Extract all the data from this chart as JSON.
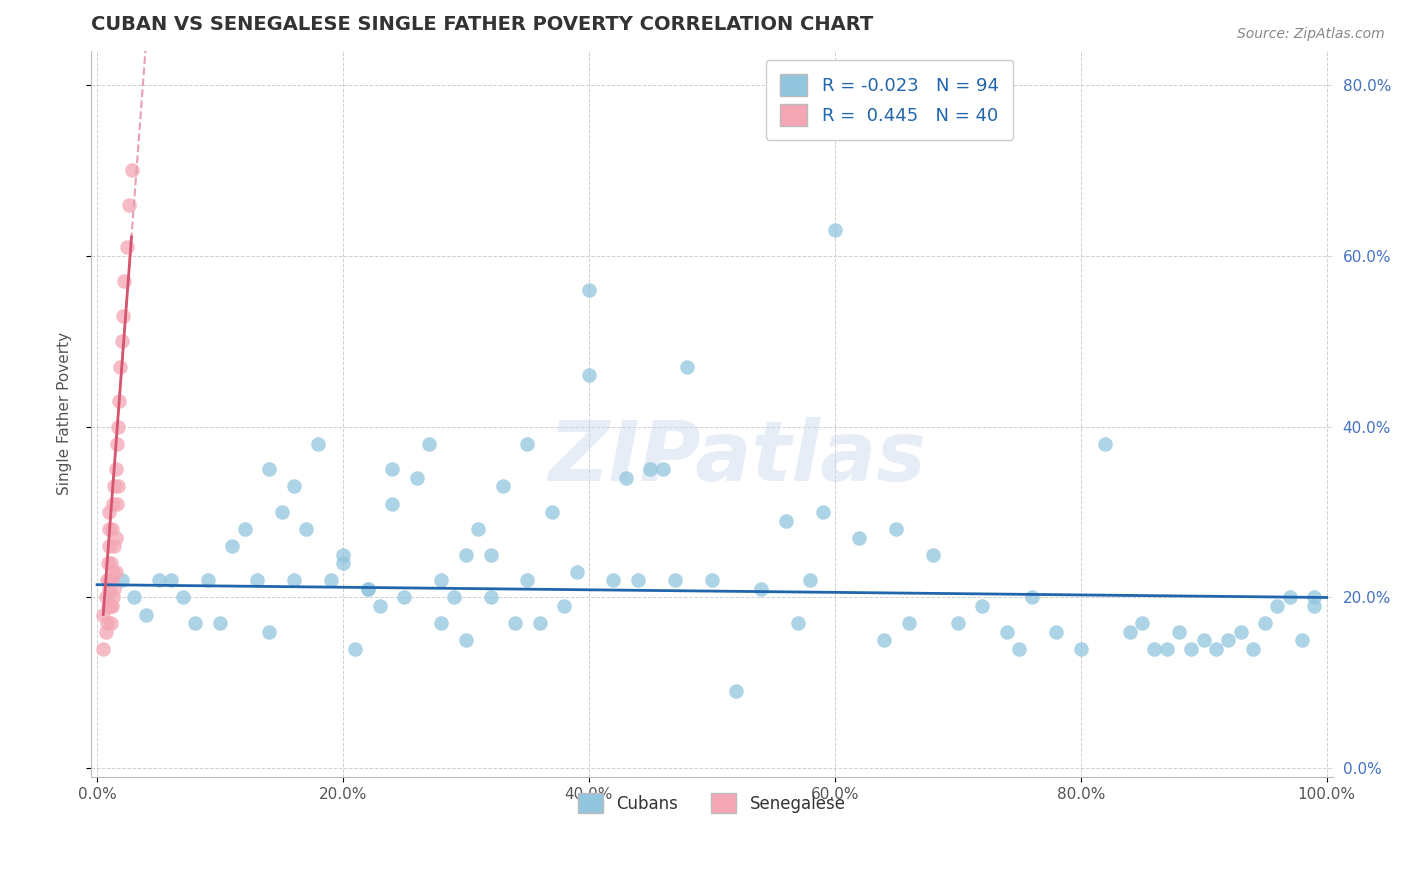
{
  "title": "CUBAN VS SENEGALESE SINGLE FATHER POVERTY CORRELATION CHART",
  "source": "Source: ZipAtlas.com",
  "ylabel": "Single Father Poverty",
  "xlim": [
    0.0,
    1.0
  ],
  "ylim": [
    0.0,
    0.84
  ],
  "x_ticks": [
    0.0,
    0.2,
    0.4,
    0.6,
    0.8,
    1.0
  ],
  "x_tick_labels": [
    "0.0%",
    "20.0%",
    "40.0%",
    "60.0%",
    "80.0%",
    "100.0%"
  ],
  "y_ticks": [
    0.0,
    0.2,
    0.4,
    0.6,
    0.8
  ],
  "y_tick_labels": [
    "0.0%",
    "20.0%",
    "40.0%",
    "60.0%",
    "80.0%"
  ],
  "cuban_color": "#92c5de",
  "senegalese_color": "#f4a6b4",
  "cuban_line_color": "#2166ac",
  "senegalese_line_color": "#d6556e",
  "senegalese_dash_color": "#e8a0b0",
  "watermark": "ZIPatlas",
  "legend_r_cuban": "-0.023",
  "legend_n_cuban": "94",
  "legend_r_sene": "0.445",
  "legend_n_sene": "40",
  "cuban_x": [
    0.02,
    0.03,
    0.04,
    0.05,
    0.06,
    0.07,
    0.08,
    0.09,
    0.1,
    0.11,
    0.12,
    0.13,
    0.14,
    0.15,
    0.16,
    0.17,
    0.18,
    0.19,
    0.2,
    0.21,
    0.22,
    0.23,
    0.24,
    0.25,
    0.26,
    0.27,
    0.28,
    0.29,
    0.3,
    0.31,
    0.32,
    0.33,
    0.34,
    0.35,
    0.36,
    0.37,
    0.38,
    0.39,
    0.4,
    0.42,
    0.43,
    0.44,
    0.45,
    0.46,
    0.47,
    0.48,
    0.5,
    0.52,
    0.54,
    0.56,
    0.57,
    0.58,
    0.59,
    0.6,
    0.62,
    0.64,
    0.65,
    0.66,
    0.68,
    0.7,
    0.72,
    0.74,
    0.75,
    0.76,
    0.78,
    0.8,
    0.82,
    0.84,
    0.85,
    0.86,
    0.87,
    0.88,
    0.89,
    0.9,
    0.91,
    0.92,
    0.93,
    0.94,
    0.95,
    0.96,
    0.97,
    0.98,
    0.99,
    0.99,
    0.14,
    0.16,
    0.2,
    0.22,
    0.24,
    0.28,
    0.3,
    0.32,
    0.35,
    0.4
  ],
  "cuban_y": [
    0.22,
    0.2,
    0.18,
    0.22,
    0.22,
    0.2,
    0.17,
    0.22,
    0.17,
    0.26,
    0.28,
    0.22,
    0.16,
    0.3,
    0.33,
    0.28,
    0.38,
    0.22,
    0.25,
    0.14,
    0.21,
    0.19,
    0.31,
    0.2,
    0.34,
    0.38,
    0.17,
    0.2,
    0.15,
    0.28,
    0.25,
    0.33,
    0.17,
    0.22,
    0.17,
    0.3,
    0.19,
    0.23,
    0.56,
    0.22,
    0.34,
    0.22,
    0.35,
    0.35,
    0.22,
    0.47,
    0.22,
    0.09,
    0.21,
    0.29,
    0.17,
    0.22,
    0.3,
    0.63,
    0.27,
    0.15,
    0.28,
    0.17,
    0.25,
    0.17,
    0.19,
    0.16,
    0.14,
    0.2,
    0.16,
    0.14,
    0.38,
    0.16,
    0.17,
    0.14,
    0.14,
    0.16,
    0.14,
    0.15,
    0.14,
    0.15,
    0.16,
    0.14,
    0.17,
    0.19,
    0.2,
    0.15,
    0.2,
    0.19,
    0.35,
    0.22,
    0.24,
    0.21,
    0.35,
    0.22,
    0.25,
    0.2,
    0.38,
    0.46
  ],
  "senegalese_x": [
    0.005,
    0.005,
    0.007,
    0.007,
    0.008,
    0.008,
    0.009,
    0.009,
    0.01,
    0.01,
    0.01,
    0.01,
    0.01,
    0.011,
    0.011,
    0.011,
    0.012,
    0.012,
    0.012,
    0.013,
    0.013,
    0.013,
    0.014,
    0.014,
    0.014,
    0.015,
    0.015,
    0.015,
    0.016,
    0.016,
    0.017,
    0.017,
    0.018,
    0.019,
    0.02,
    0.021,
    0.022,
    0.024,
    0.026,
    0.028
  ],
  "senegalese_y": [
    0.18,
    0.14,
    0.2,
    0.16,
    0.22,
    0.17,
    0.24,
    0.19,
    0.26,
    0.21,
    0.28,
    0.22,
    0.3,
    0.19,
    0.24,
    0.17,
    0.28,
    0.22,
    0.19,
    0.31,
    0.23,
    0.2,
    0.33,
    0.26,
    0.21,
    0.35,
    0.27,
    0.23,
    0.38,
    0.31,
    0.4,
    0.33,
    0.43,
    0.47,
    0.5,
    0.53,
    0.57,
    0.61,
    0.66,
    0.7
  ],
  "sene_outlier_x": [
    0.005
  ],
  "sene_outlier_y": [
    0.7
  ]
}
